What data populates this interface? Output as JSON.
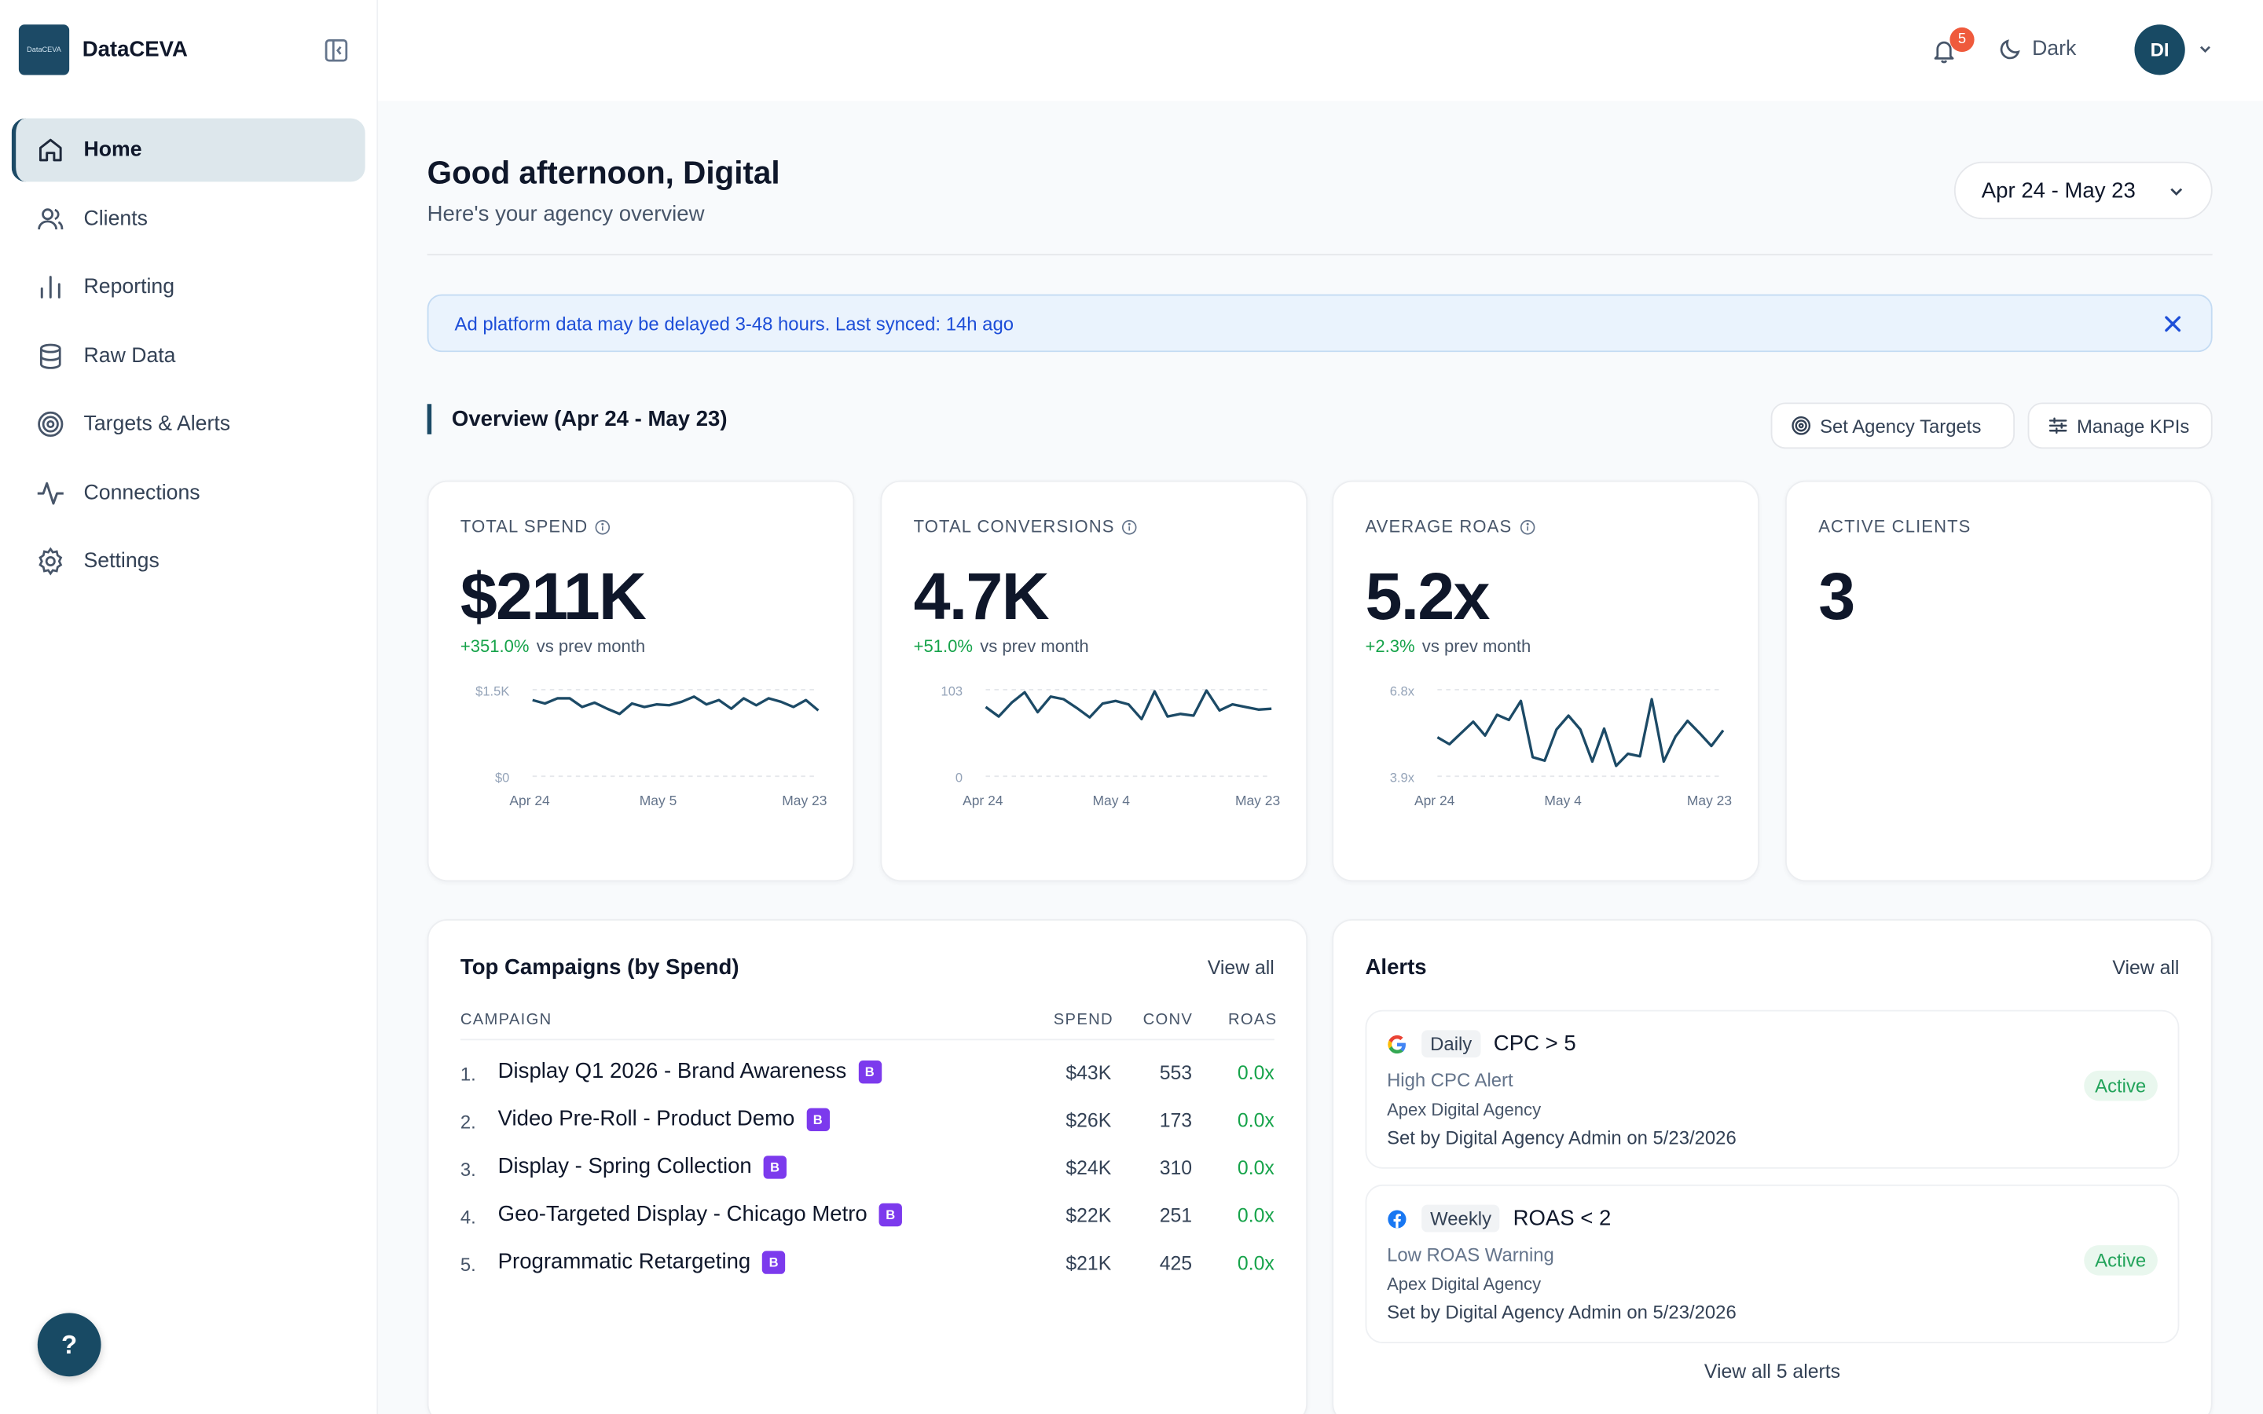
{
  "brand": {
    "logo_text": "DataCEVA",
    "name": "DataCEVA",
    "color": "#1c4a66"
  },
  "sidebar": {
    "items": [
      {
        "label": "Home",
        "icon": "home-icon",
        "active": true
      },
      {
        "label": "Clients",
        "icon": "users-icon"
      },
      {
        "label": "Reporting",
        "icon": "bar-chart-icon"
      },
      {
        "label": "Raw Data",
        "icon": "database-icon"
      },
      {
        "label": "Targets & Alerts",
        "icon": "target-icon"
      },
      {
        "label": "Connections",
        "icon": "activity-icon"
      },
      {
        "label": "Settings",
        "icon": "gear-icon"
      }
    ],
    "help_label": "?"
  },
  "topbar": {
    "notification_count": "5",
    "theme_label": "Dark",
    "avatar_initials": "DI"
  },
  "header": {
    "greeting": "Good afternoon, Digital",
    "subtitle": "Here's your agency overview",
    "date_range": "Apr 24 - May 23"
  },
  "banner": {
    "text": "Ad platform data may be delayed 3-48 hours. Last synced: 14h ago"
  },
  "overview": {
    "title": "Overview (Apr 24 - May 23)",
    "set_targets_label": "Set Agency Targets",
    "manage_kpis_label": "Manage KPIs"
  },
  "kpis": [
    {
      "label": "TOTAL SPEND",
      "value": "$211K",
      "change": "+351.0%",
      "change_suffix": "vs prev month",
      "chart": {
        "y_top": "$1.5K",
        "y_bottom": "$0",
        "x_labels": [
          "Apr 24",
          "May 5",
          "May 23"
        ],
        "values": [
          0.88,
          0.84,
          0.9,
          0.9,
          0.8,
          0.85,
          0.78,
          0.72,
          0.84,
          0.8,
          0.83,
          0.82,
          0.86,
          0.92,
          0.83,
          0.88,
          0.78,
          0.9,
          0.82,
          0.9,
          0.86,
          0.8,
          0.88,
          0.76
        ]
      }
    },
    {
      "label": "TOTAL CONVERSIONS",
      "value": "4.7K",
      "change": "+51.0%",
      "change_suffix": "vs prev month",
      "chart": {
        "y_top": "103",
        "y_bottom": "0",
        "x_labels": [
          "Apr 24",
          "May 4",
          "May 23"
        ],
        "values": [
          0.8,
          0.69,
          0.85,
          0.97,
          0.74,
          0.92,
          0.89,
          0.79,
          0.68,
          0.84,
          0.87,
          0.83,
          0.66,
          0.98,
          0.69,
          0.72,
          0.7,
          0.99,
          0.76,
          0.83,
          0.8,
          0.77,
          0.78
        ]
      }
    },
    {
      "label": "AVERAGE ROAS",
      "value": "5.2x",
      "change": "+2.3%",
      "change_suffix": "vs prev month",
      "chart": {
        "y_top": "6.8x",
        "y_bottom": "3.9x",
        "x_labels": [
          "Apr 24",
          "May 4",
          "May 23"
        ],
        "values": [
          0.45,
          0.37,
          0.5,
          0.63,
          0.47,
          0.71,
          0.65,
          0.87,
          0.22,
          0.18,
          0.54,
          0.7,
          0.54,
          0.17,
          0.55,
          0.12,
          0.26,
          0.23,
          0.89,
          0.17,
          0.46,
          0.64,
          0.5,
          0.35,
          0.53
        ]
      }
    },
    {
      "label": "ACTIVE CLIENTS",
      "value": "3"
    }
  ],
  "campaigns": {
    "title": "Top Campaigns (by Spend)",
    "view_all": "View all",
    "columns": {
      "campaign": "CAMPAIGN",
      "spend": "SPEND",
      "conv": "CONV",
      "roas": "ROAS"
    },
    "rows": [
      {
        "num": "1.",
        "name": "Display Q1 2026 - Brand Awareness",
        "badge": "B",
        "spend": "$43K",
        "conv": "553",
        "roas": "0.0x"
      },
      {
        "num": "2.",
        "name": "Video Pre-Roll - Product Demo",
        "badge": "B",
        "spend": "$26K",
        "conv": "173",
        "roas": "0.0x"
      },
      {
        "num": "3.",
        "name": "Display - Spring Collection",
        "badge": "B",
        "spend": "$24K",
        "conv": "310",
        "roas": "0.0x"
      },
      {
        "num": "4.",
        "name": "Geo-Targeted Display - Chicago Metro",
        "badge": "B",
        "spend": "$22K",
        "conv": "251",
        "roas": "0.0x"
      },
      {
        "num": "5.",
        "name": "Programmatic Retargeting",
        "badge": "B",
        "spend": "$21K",
        "conv": "425",
        "roas": "0.0x"
      }
    ]
  },
  "alerts": {
    "title": "Alerts",
    "view_all": "View all",
    "items": [
      {
        "platform": "google-icon",
        "frequency": "Daily",
        "rule": "CPC > 5",
        "name": "High CPC Alert",
        "agency": "Apex Digital Agency",
        "set_by": "Set by Digital Agency Admin on 5/23/2026",
        "status": "Active"
      },
      {
        "platform": "facebook-icon",
        "frequency": "Weekly",
        "rule": "ROAS < 2",
        "name": "Low ROAS Warning",
        "agency": "Apex Digital Agency",
        "set_by": "Set by Digital Agency Admin on 5/23/2026",
        "status": "Active"
      }
    ],
    "footer": "View all 5 alerts"
  }
}
